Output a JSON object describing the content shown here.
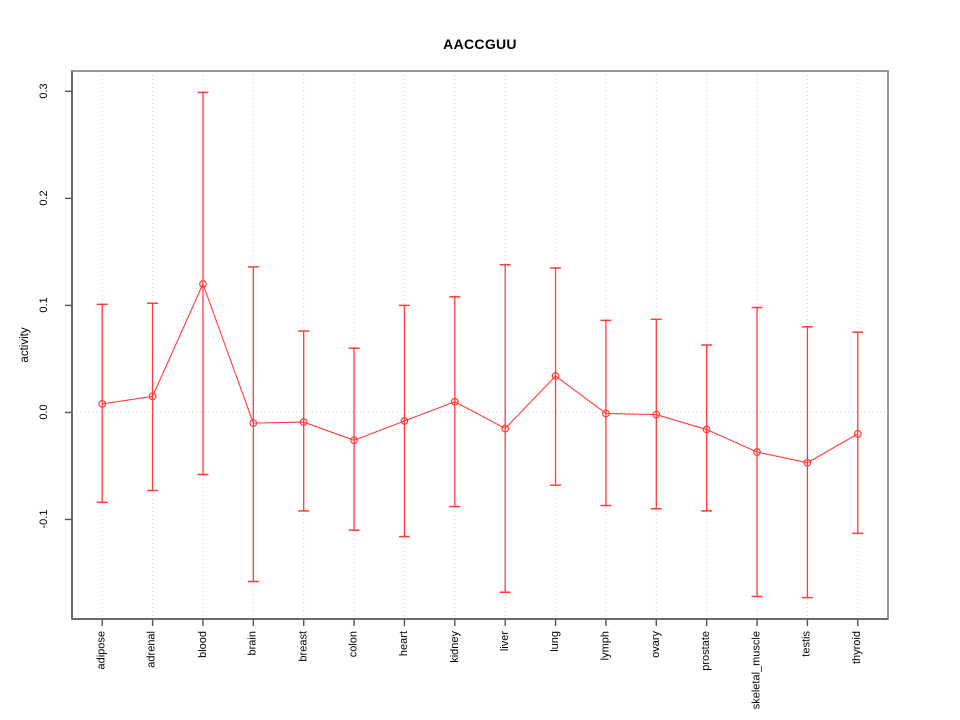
{
  "window": {
    "background": "#FFFFFF"
  },
  "chart_data": {
    "type": "line",
    "subtype": "points-with-error-bars",
    "title": "AACCGUU",
    "xlabel": "",
    "ylabel": "activity",
    "categories": [
      "adipose",
      "adrenal",
      "blood",
      "brain",
      "breast",
      "colon",
      "heart",
      "kidney",
      "liver",
      "lung",
      "lymph",
      "ovary",
      "prostate",
      "skeletal_muscle",
      "testis",
      "thyroid"
    ],
    "series": [
      {
        "name": "activity",
        "values": [
          0.008,
          0.015,
          0.12,
          -0.01,
          -0.009,
          -0.026,
          -0.008,
          0.01,
          -0.015,
          0.034,
          -0.001,
          -0.002,
          -0.016,
          -0.037,
          -0.047,
          -0.02
        ],
        "upper": [
          0.101,
          0.102,
          0.299,
          0.136,
          0.076,
          0.06,
          0.1,
          0.108,
          0.138,
          0.135,
          0.086,
          0.087,
          0.063,
          0.098,
          0.08,
          0.075
        ],
        "lower": [
          -0.084,
          -0.073,
          -0.058,
          -0.158,
          -0.092,
          -0.11,
          -0.116,
          -0.088,
          -0.168,
          -0.068,
          -0.087,
          -0.09,
          -0.092,
          -0.172,
          -0.173,
          -0.113
        ]
      }
    ],
    "error_bars": true,
    "marker": "open-circle",
    "yticks": [
      0.3,
      0.2,
      0.1,
      0.0,
      -0.1
    ],
    "ytick_labels": [
      "0.3",
      "0.2",
      "0.1",
      "0.0",
      "-0.1"
    ],
    "ylim": [
      -0.193,
      0.319
    ],
    "zero_line": 0.0,
    "grid": {
      "vertical_dotted_per_category": true,
      "horizontal_dotted_at_zero": true
    },
    "legend": "none",
    "colors": {
      "series": "#FF3B3B",
      "grid": "#D4D4D4",
      "frame": "#999999",
      "axis": "#6B6B6B",
      "tick": "#555555",
      "text": "#000000"
    }
  }
}
